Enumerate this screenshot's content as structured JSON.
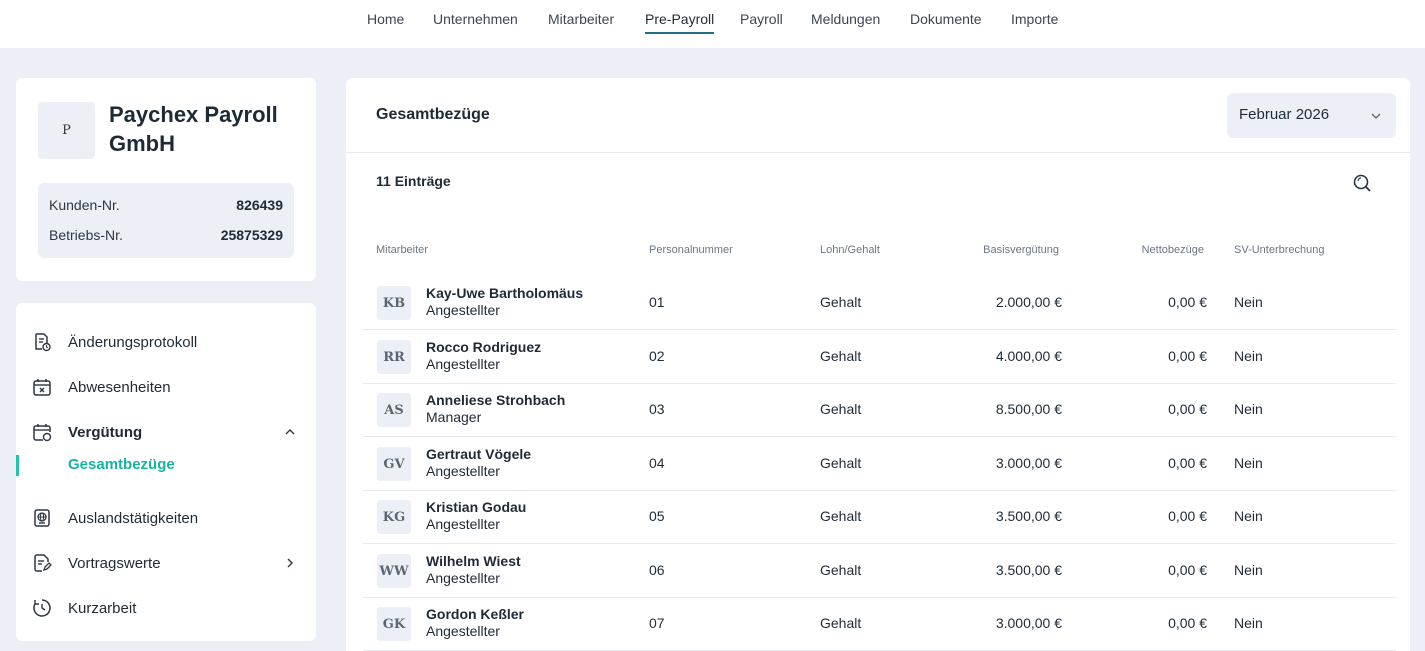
{
  "nav": {
    "items": [
      {
        "label": "Home"
      },
      {
        "label": "Unternehmen"
      },
      {
        "label": "Mitarbeiter"
      },
      {
        "label": "Pre-Payroll"
      },
      {
        "label": "Payroll"
      },
      {
        "label": "Meldungen"
      },
      {
        "label": "Dokumente"
      },
      {
        "label": "Importe"
      }
    ],
    "active": "Pre-Payroll"
  },
  "company": {
    "logo_text": "P",
    "name": "Paychex Payroll GmbH",
    "customer_label": "Kunden-Nr.",
    "customer_value": "826439",
    "business_label": "Betriebs-Nr.",
    "business_value": "25875329"
  },
  "sidebar": {
    "items": [
      {
        "label": "Änderungsprotokoll",
        "icon": "document-clock-icon"
      },
      {
        "label": "Abwesenheiten",
        "icon": "calendar-x-icon"
      },
      {
        "label": "Vergütung",
        "icon": "calendar-money-icon"
      },
      {
        "label": "Auslandstätigkeiten",
        "icon": "passport-globe-icon"
      },
      {
        "label": "Vortragswerte",
        "icon": "document-edit-icon"
      },
      {
        "label": "Kurzarbeit",
        "icon": "timer-icon"
      }
    ],
    "sub_item": {
      "label": "Gesamtbezüge"
    },
    "accent_color": "#20c4b0"
  },
  "main": {
    "title": "Gesamtbezüge",
    "month": "Februar 2026",
    "count": "11 Einträge",
    "columns": {
      "employee": "Mitarbeiter",
      "personnel_no": "Personalnummer",
      "wage_type": "Lohn/Gehalt",
      "base_pay": "Basisvergütung",
      "net_pay": "Nettobezüge",
      "sv_break": "SV-Unterbrechung"
    },
    "rows": [
      {
        "initials": "KB",
        "name": "Kay-Uwe Bartholomäus",
        "role": "Angestellter",
        "no": "01",
        "type": "Gehalt",
        "base": "2.000,00 €",
        "net": "0,00 €",
        "sv": "Nein"
      },
      {
        "initials": "RR",
        "name": "Rocco Rodriguez",
        "role": "Angestellter",
        "no": "02",
        "type": "Gehalt",
        "base": "4.000,00 €",
        "net": "0,00 €",
        "sv": "Nein"
      },
      {
        "initials": "AS",
        "name": "Anneliese Strohbach",
        "role": "Manager",
        "no": "03",
        "type": "Gehalt",
        "base": "8.500,00 €",
        "net": "0,00 €",
        "sv": "Nein"
      },
      {
        "initials": "GV",
        "name": "Gertraut Vögele",
        "role": "Angestellter",
        "no": "04",
        "type": "Gehalt",
        "base": "3.000,00 €",
        "net": "0,00 €",
        "sv": "Nein"
      },
      {
        "initials": "KG",
        "name": "Kristian Godau",
        "role": "Angestellter",
        "no": "05",
        "type": "Gehalt",
        "base": "3.500,00 €",
        "net": "0,00 €",
        "sv": "Nein"
      },
      {
        "initials": "WW",
        "name": "Wilhelm Wiest",
        "role": "Angestellter",
        "no": "06",
        "type": "Gehalt",
        "base": "3.500,00 €",
        "net": "0,00 €",
        "sv": "Nein"
      },
      {
        "initials": "GK",
        "name": "Gordon Keßler",
        "role": "Angestellter",
        "no": "07",
        "type": "Gehalt",
        "base": "3.000,00 €",
        "net": "0,00 €",
        "sv": "Nein"
      }
    ]
  }
}
